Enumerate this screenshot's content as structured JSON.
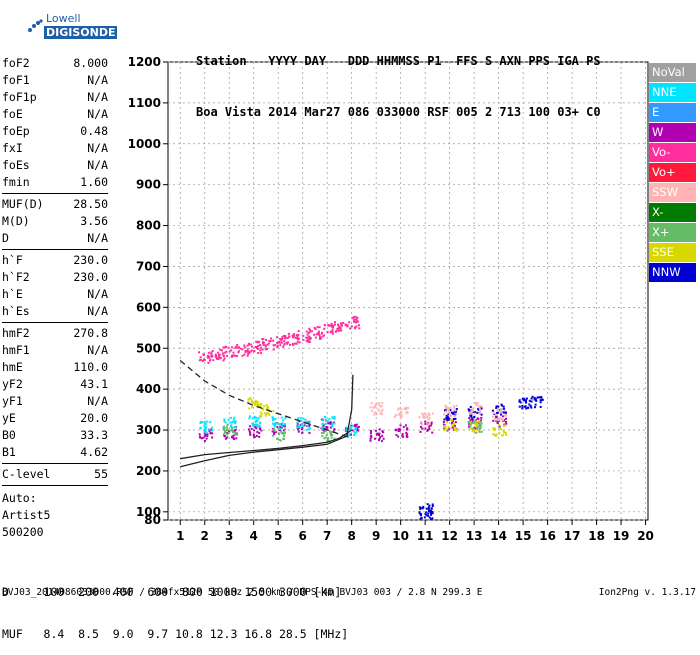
{
  "header": {
    "line1": "Station   YYYY DAY   DDD HHMMSS P1  FFS S AXN PPS IGA PS",
    "line2": "Boa Vista 2014 Mar27 086 033000 RSF 005 2 713 100 03+ C0"
  },
  "logo": {
    "top": "Lowell",
    "bottom": "DIGISONDE"
  },
  "params": {
    "group1": [
      {
        "k": "foF2",
        "v": "8.000"
      },
      {
        "k": "foF1",
        "v": "N/A"
      },
      {
        "k": "foF1p",
        "v": "N/A"
      },
      {
        "k": "foE",
        "v": "N/A"
      },
      {
        "k": "foEp",
        "v": "0.48"
      },
      {
        "k": "fxI",
        "v": "N/A"
      },
      {
        "k": "foEs",
        "v": "N/A"
      },
      {
        "k": "fmin",
        "v": "1.60"
      }
    ],
    "group2": [
      {
        "k": "MUF(D)",
        "v": "28.50"
      },
      {
        "k": "M(D)",
        "v": "3.56"
      },
      {
        "k": "D",
        "v": "N/A"
      }
    ],
    "group3": [
      {
        "k": "h`F",
        "v": "230.0"
      },
      {
        "k": "h`F2",
        "v": "230.0"
      },
      {
        "k": "h`E",
        "v": "N/A"
      },
      {
        "k": "h`Es",
        "v": "N/A"
      }
    ],
    "group4": [
      {
        "k": "hmF2",
        "v": "270.8"
      },
      {
        "k": "hmF1",
        "v": "N/A"
      },
      {
        "k": "hmE",
        "v": "110.0"
      },
      {
        "k": "yF2",
        "v": "43.1"
      },
      {
        "k": "yF1",
        "v": "N/A"
      },
      {
        "k": "yE",
        "v": "20.0"
      },
      {
        "k": "B0",
        "v": "33.3"
      },
      {
        "k": "B1",
        "v": "4.62"
      }
    ],
    "group5": [
      {
        "k": "C-level",
        "v": "55"
      }
    ],
    "auto": [
      "Auto:",
      "Artist5",
      "500200"
    ]
  },
  "legend": [
    {
      "label": "NoVal",
      "color": "#a0a0a0"
    },
    {
      "label": "NNE",
      "color": "#00e5ff"
    },
    {
      "label": "E",
      "color": "#3399ff"
    },
    {
      "label": "W",
      "color": "#b000b0"
    },
    {
      "label": "Vo-",
      "color": "#ff2d9e"
    },
    {
      "label": "Vo+",
      "color": "#ff1a3c"
    },
    {
      "label": "SSW",
      "color": "#ffb3b3"
    },
    {
      "label": "X-",
      "color": "#007a00"
    },
    {
      "label": "X+",
      "color": "#66bb66"
    },
    {
      "label": "SSE",
      "color": "#d8d800"
    },
    {
      "label": "NNW",
      "color": "#0000d0"
    }
  ],
  "footer": {
    "line1": "D     100  200  400  600  800 1000 1500 3000 [km]",
    "line2": "MUF   8.4  8.5  9.0  9.7 10.8 12.3 16.8 28.5 [MHz]",
    "line3": "BVJ03_2014086033000.RSF / 384fx512h 50 kHz 2.5 km / DPS-4D BVJ03 003 / 2.8 N 299.3 E",
    "version": "Ion2Png v. 1.3.17"
  },
  "chart_data": {
    "type": "scatter",
    "title": "",
    "xlabel": "",
    "ylabel": "",
    "xlim": [
      0.5,
      20.1
    ],
    "ylim": [
      80,
      1200
    ],
    "x_ticks": [
      1,
      2,
      3,
      4,
      5,
      6,
      7,
      8,
      9,
      10,
      11,
      12,
      13,
      14,
      15,
      16,
      17,
      18,
      19,
      20
    ],
    "y_ticks": [
      80,
      100,
      200,
      300,
      400,
      500,
      600,
      700,
      800,
      900,
      1000,
      1100,
      1200
    ],
    "grid": true,
    "legend_position": "right",
    "series": [
      {
        "name": "Vo-",
        "color": "#ff2d9e",
        "points": [
          [
            2,
            480
          ],
          [
            2.5,
            486
          ],
          [
            3,
            492
          ],
          [
            3.5,
            498
          ],
          [
            4,
            505
          ],
          [
            4.5,
            512
          ],
          [
            5,
            518
          ],
          [
            5.5,
            525
          ],
          [
            6,
            531
          ],
          [
            6.5,
            540
          ],
          [
            7,
            548
          ],
          [
            7.5,
            556
          ],
          [
            8,
            565
          ]
        ]
      },
      {
        "name": "W",
        "color": "#b000b0",
        "points": [
          [
            2,
            290
          ],
          [
            3,
            295
          ],
          [
            4,
            300
          ],
          [
            5,
            305
          ],
          [
            6,
            310
          ],
          [
            7,
            315
          ],
          [
            8,
            305
          ],
          [
            9,
            290
          ],
          [
            10,
            300
          ],
          [
            11,
            310
          ],
          [
            12,
            315
          ],
          [
            13,
            320
          ],
          [
            14,
            325
          ]
        ]
      },
      {
        "name": "NNE",
        "color": "#00e5ff",
        "points": [
          [
            2,
            310
          ],
          [
            3,
            318
          ],
          [
            4,
            322
          ],
          [
            5,
            320
          ],
          [
            6,
            318
          ],
          [
            7,
            320
          ],
          [
            8,
            300
          ]
        ]
      },
      {
        "name": "NNW",
        "color": "#0000d0",
        "points": [
          [
            12,
            340
          ],
          [
            13,
            345
          ],
          [
            14,
            350
          ],
          [
            15,
            365
          ],
          [
            15.5,
            370
          ],
          [
            11,
            110
          ],
          [
            11,
            90
          ]
        ]
      },
      {
        "name": "SSW",
        "color": "#ffb3b3",
        "points": [
          [
            9,
            355
          ],
          [
            10,
            345
          ],
          [
            11,
            330
          ],
          [
            12,
            350
          ],
          [
            13,
            355
          ],
          [
            14,
            340
          ]
        ]
      },
      {
        "name": "SSE",
        "color": "#d8d800",
        "points": [
          [
            12,
            315
          ],
          [
            13,
            310
          ],
          [
            14,
            300
          ],
          [
            4,
            370
          ],
          [
            4.5,
            350
          ]
        ]
      },
      {
        "name": "X+",
        "color": "#66bb66",
        "points": [
          [
            3,
            300
          ],
          [
            5,
            290
          ],
          [
            7,
            285
          ],
          [
            13,
            310
          ]
        ]
      }
    ],
    "traces": [
      {
        "name": "profile",
        "style": "solid",
        "points": [
          [
            1,
            210
          ],
          [
            2,
            225
          ],
          [
            3,
            238
          ],
          [
            4,
            246
          ],
          [
            5,
            252
          ],
          [
            6,
            258
          ],
          [
            7,
            265
          ],
          [
            7.8,
            285
          ],
          [
            8,
            350
          ],
          [
            8.05,
            435
          ]
        ]
      },
      {
        "name": "virtual",
        "style": "solid",
        "points": [
          [
            1,
            230
          ],
          [
            2,
            240
          ],
          [
            3,
            245
          ],
          [
            4,
            250
          ],
          [
            5,
            255
          ],
          [
            6,
            262
          ],
          [
            7,
            270
          ],
          [
            7.5,
            280
          ],
          [
            8,
            300
          ]
        ]
      },
      {
        "name": "dashed",
        "style": "dashed",
        "points": [
          [
            1,
            470
          ],
          [
            2,
            420
          ],
          [
            3,
            385
          ],
          [
            4,
            360
          ],
          [
            5,
            340
          ],
          [
            6,
            320
          ],
          [
            7,
            300
          ],
          [
            8,
            280
          ]
        ]
      }
    ]
  }
}
